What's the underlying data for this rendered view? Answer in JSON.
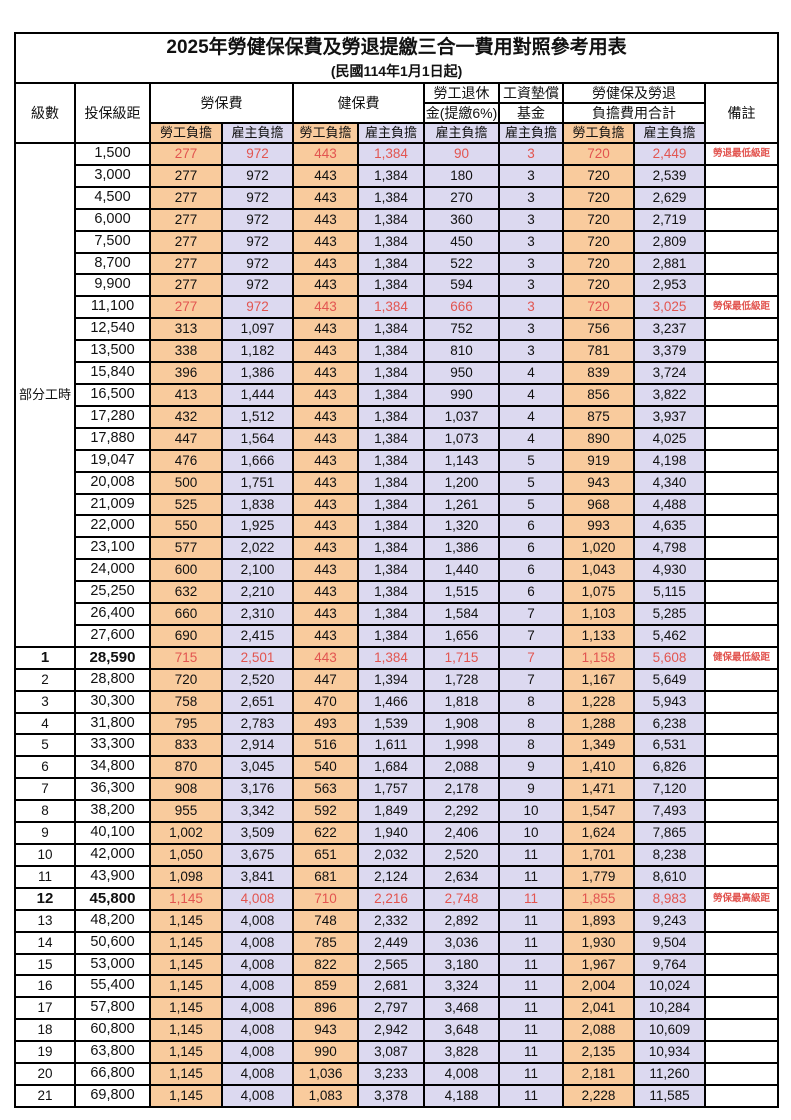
{
  "title": "2025年勞健保保費及勞退提繳三合一費用對照參考用表",
  "subtitle": "(民國114年1月1日起)",
  "colors": {
    "employee_bg": "#f9cb9d",
    "employer_bg": "#dcd9f0",
    "highlight_red": "#e25550",
    "border_color": "#000000"
  },
  "header": {
    "level": "級數",
    "bracket": "投保級距",
    "labor_insurance": "勞保費",
    "health_insurance": "健保費",
    "pension_line1": "勞工退休",
    "pension_line2": "金(提繳6%)",
    "wage_fund_line1": "工資墊償",
    "wage_fund_line2": "基金",
    "total_line1": "勞健保及勞退",
    "total_line2": "負擔費用合計",
    "remark": "備註",
    "employee_share": "勞工負擔",
    "employer_share": "雇主負擔"
  },
  "part_time_label": "部分工時",
  "rows": [
    {
      "level": "",
      "salary": "1,500",
      "li_emp": "277",
      "li_er": "972",
      "hi_emp": "443",
      "hi_er": "1,384",
      "pension": "90",
      "fund": "3",
      "tot_emp": "720",
      "tot_er": "2,449",
      "remark": "勞退最低級距",
      "highlight": true,
      "bold": false
    },
    {
      "level": "",
      "salary": "3,000",
      "li_emp": "277",
      "li_er": "972",
      "hi_emp": "443",
      "hi_er": "1,384",
      "pension": "180",
      "fund": "3",
      "tot_emp": "720",
      "tot_er": "2,539",
      "remark": "",
      "highlight": false,
      "bold": false
    },
    {
      "level": "",
      "salary": "4,500",
      "li_emp": "277",
      "li_er": "972",
      "hi_emp": "443",
      "hi_er": "1,384",
      "pension": "270",
      "fund": "3",
      "tot_emp": "720",
      "tot_er": "2,629",
      "remark": "",
      "highlight": false,
      "bold": false
    },
    {
      "level": "",
      "salary": "6,000",
      "li_emp": "277",
      "li_er": "972",
      "hi_emp": "443",
      "hi_er": "1,384",
      "pension": "360",
      "fund": "3",
      "tot_emp": "720",
      "tot_er": "2,719",
      "remark": "",
      "highlight": false,
      "bold": false
    },
    {
      "level": "",
      "salary": "7,500",
      "li_emp": "277",
      "li_er": "972",
      "hi_emp": "443",
      "hi_er": "1,384",
      "pension": "450",
      "fund": "3",
      "tot_emp": "720",
      "tot_er": "2,809",
      "remark": "",
      "highlight": false,
      "bold": false
    },
    {
      "level": "",
      "salary": "8,700",
      "li_emp": "277",
      "li_er": "972",
      "hi_emp": "443",
      "hi_er": "1,384",
      "pension": "522",
      "fund": "3",
      "tot_emp": "720",
      "tot_er": "2,881",
      "remark": "",
      "highlight": false,
      "bold": false
    },
    {
      "level": "",
      "salary": "9,900",
      "li_emp": "277",
      "li_er": "972",
      "hi_emp": "443",
      "hi_er": "1,384",
      "pension": "594",
      "fund": "3",
      "tot_emp": "720",
      "tot_er": "2,953",
      "remark": "",
      "highlight": false,
      "bold": false
    },
    {
      "level": "",
      "salary": "11,100",
      "li_emp": "277",
      "li_er": "972",
      "hi_emp": "443",
      "hi_er": "1,384",
      "pension": "666",
      "fund": "3",
      "tot_emp": "720",
      "tot_er": "3,025",
      "remark": "勞保最低級距",
      "highlight": true,
      "bold": false
    },
    {
      "level": "",
      "salary": "12,540",
      "li_emp": "313",
      "li_er": "1,097",
      "hi_emp": "443",
      "hi_er": "1,384",
      "pension": "752",
      "fund": "3",
      "tot_emp": "756",
      "tot_er": "3,237",
      "remark": "",
      "highlight": false,
      "bold": false
    },
    {
      "level": "",
      "salary": "13,500",
      "li_emp": "338",
      "li_er": "1,182",
      "hi_emp": "443",
      "hi_er": "1,384",
      "pension": "810",
      "fund": "3",
      "tot_emp": "781",
      "tot_er": "3,379",
      "remark": "",
      "highlight": false,
      "bold": false
    },
    {
      "level": "",
      "salary": "15,840",
      "li_emp": "396",
      "li_er": "1,386",
      "hi_emp": "443",
      "hi_er": "1,384",
      "pension": "950",
      "fund": "4",
      "tot_emp": "839",
      "tot_er": "3,724",
      "remark": "",
      "highlight": false,
      "bold": false
    },
    {
      "level": "",
      "salary": "16,500",
      "li_emp": "413",
      "li_er": "1,444",
      "hi_emp": "443",
      "hi_er": "1,384",
      "pension": "990",
      "fund": "4",
      "tot_emp": "856",
      "tot_er": "3,822",
      "remark": "",
      "highlight": false,
      "bold": false
    },
    {
      "level": "",
      "salary": "17,280",
      "li_emp": "432",
      "li_er": "1,512",
      "hi_emp": "443",
      "hi_er": "1,384",
      "pension": "1,037",
      "fund": "4",
      "tot_emp": "875",
      "tot_er": "3,937",
      "remark": "",
      "highlight": false,
      "bold": false
    },
    {
      "level": "",
      "salary": "17,880",
      "li_emp": "447",
      "li_er": "1,564",
      "hi_emp": "443",
      "hi_er": "1,384",
      "pension": "1,073",
      "fund": "4",
      "tot_emp": "890",
      "tot_er": "4,025",
      "remark": "",
      "highlight": false,
      "bold": false
    },
    {
      "level": "",
      "salary": "19,047",
      "li_emp": "476",
      "li_er": "1,666",
      "hi_emp": "443",
      "hi_er": "1,384",
      "pension": "1,143",
      "fund": "5",
      "tot_emp": "919",
      "tot_er": "4,198",
      "remark": "",
      "highlight": false,
      "bold": false
    },
    {
      "level": "",
      "salary": "20,008",
      "li_emp": "500",
      "li_er": "1,751",
      "hi_emp": "443",
      "hi_er": "1,384",
      "pension": "1,200",
      "fund": "5",
      "tot_emp": "943",
      "tot_er": "4,340",
      "remark": "",
      "highlight": false,
      "bold": false
    },
    {
      "level": "",
      "salary": "21,009",
      "li_emp": "525",
      "li_er": "1,838",
      "hi_emp": "443",
      "hi_er": "1,384",
      "pension": "1,261",
      "fund": "5",
      "tot_emp": "968",
      "tot_er": "4,488",
      "remark": "",
      "highlight": false,
      "bold": false
    },
    {
      "level": "",
      "salary": "22,000",
      "li_emp": "550",
      "li_er": "1,925",
      "hi_emp": "443",
      "hi_er": "1,384",
      "pension": "1,320",
      "fund": "6",
      "tot_emp": "993",
      "tot_er": "4,635",
      "remark": "",
      "highlight": false,
      "bold": false
    },
    {
      "level": "",
      "salary": "23,100",
      "li_emp": "577",
      "li_er": "2,022",
      "hi_emp": "443",
      "hi_er": "1,384",
      "pension": "1,386",
      "fund": "6",
      "tot_emp": "1,020",
      "tot_er": "4,798",
      "remark": "",
      "highlight": false,
      "bold": false
    },
    {
      "level": "",
      "salary": "24,000",
      "li_emp": "600",
      "li_er": "2,100",
      "hi_emp": "443",
      "hi_er": "1,384",
      "pension": "1,440",
      "fund": "6",
      "tot_emp": "1,043",
      "tot_er": "4,930",
      "remark": "",
      "highlight": false,
      "bold": false
    },
    {
      "level": "",
      "salary": "25,250",
      "li_emp": "632",
      "li_er": "2,210",
      "hi_emp": "443",
      "hi_er": "1,384",
      "pension": "1,515",
      "fund": "6",
      "tot_emp": "1,075",
      "tot_er": "5,115",
      "remark": "",
      "highlight": false,
      "bold": false
    },
    {
      "level": "",
      "salary": "26,400",
      "li_emp": "660",
      "li_er": "2,310",
      "hi_emp": "443",
      "hi_er": "1,384",
      "pension": "1,584",
      "fund": "7",
      "tot_emp": "1,103",
      "tot_er": "5,285",
      "remark": "",
      "highlight": false,
      "bold": false
    },
    {
      "level": "",
      "salary": "27,600",
      "li_emp": "690",
      "li_er": "2,415",
      "hi_emp": "443",
      "hi_er": "1,384",
      "pension": "1,656",
      "fund": "7",
      "tot_emp": "1,133",
      "tot_er": "5,462",
      "remark": "",
      "highlight": false,
      "bold": false
    },
    {
      "level": "1",
      "salary": "28,590",
      "li_emp": "715",
      "li_er": "2,501",
      "hi_emp": "443",
      "hi_er": "1,384",
      "pension": "1,715",
      "fund": "7",
      "tot_emp": "1,158",
      "tot_er": "5,608",
      "remark": "健保最低級距",
      "highlight": true,
      "bold": true
    },
    {
      "level": "2",
      "salary": "28,800",
      "li_emp": "720",
      "li_er": "2,520",
      "hi_emp": "447",
      "hi_er": "1,394",
      "pension": "1,728",
      "fund": "7",
      "tot_emp": "1,167",
      "tot_er": "5,649",
      "remark": "",
      "highlight": false,
      "bold": false
    },
    {
      "level": "3",
      "salary": "30,300",
      "li_emp": "758",
      "li_er": "2,651",
      "hi_emp": "470",
      "hi_er": "1,466",
      "pension": "1,818",
      "fund": "8",
      "tot_emp": "1,228",
      "tot_er": "5,943",
      "remark": "",
      "highlight": false,
      "bold": false
    },
    {
      "level": "4",
      "salary": "31,800",
      "li_emp": "795",
      "li_er": "2,783",
      "hi_emp": "493",
      "hi_er": "1,539",
      "pension": "1,908",
      "fund": "8",
      "tot_emp": "1,288",
      "tot_er": "6,238",
      "remark": "",
      "highlight": false,
      "bold": false
    },
    {
      "level": "5",
      "salary": "33,300",
      "li_emp": "833",
      "li_er": "2,914",
      "hi_emp": "516",
      "hi_er": "1,611",
      "pension": "1,998",
      "fund": "8",
      "tot_emp": "1,349",
      "tot_er": "6,531",
      "remark": "",
      "highlight": false,
      "bold": false
    },
    {
      "level": "6",
      "salary": "34,800",
      "li_emp": "870",
      "li_er": "3,045",
      "hi_emp": "540",
      "hi_er": "1,684",
      "pension": "2,088",
      "fund": "9",
      "tot_emp": "1,410",
      "tot_er": "6,826",
      "remark": "",
      "highlight": false,
      "bold": false
    },
    {
      "level": "7",
      "salary": "36,300",
      "li_emp": "908",
      "li_er": "3,176",
      "hi_emp": "563",
      "hi_er": "1,757",
      "pension": "2,178",
      "fund": "9",
      "tot_emp": "1,471",
      "tot_er": "7,120",
      "remark": "",
      "highlight": false,
      "bold": false
    },
    {
      "level": "8",
      "salary": "38,200",
      "li_emp": "955",
      "li_er": "3,342",
      "hi_emp": "592",
      "hi_er": "1,849",
      "pension": "2,292",
      "fund": "10",
      "tot_emp": "1,547",
      "tot_er": "7,493",
      "remark": "",
      "highlight": false,
      "bold": false
    },
    {
      "level": "9",
      "salary": "40,100",
      "li_emp": "1,002",
      "li_er": "3,509",
      "hi_emp": "622",
      "hi_er": "1,940",
      "pension": "2,406",
      "fund": "10",
      "tot_emp": "1,624",
      "tot_er": "7,865",
      "remark": "",
      "highlight": false,
      "bold": false
    },
    {
      "level": "10",
      "salary": "42,000",
      "li_emp": "1,050",
      "li_er": "3,675",
      "hi_emp": "651",
      "hi_er": "2,032",
      "pension": "2,520",
      "fund": "11",
      "tot_emp": "1,701",
      "tot_er": "8,238",
      "remark": "",
      "highlight": false,
      "bold": false
    },
    {
      "level": "11",
      "salary": "43,900",
      "li_emp": "1,098",
      "li_er": "3,841",
      "hi_emp": "681",
      "hi_er": "2,124",
      "pension": "2,634",
      "fund": "11",
      "tot_emp": "1,779",
      "tot_er": "8,610",
      "remark": "",
      "highlight": false,
      "bold": false
    },
    {
      "level": "12",
      "salary": "45,800",
      "li_emp": "1,145",
      "li_er": "4,008",
      "hi_emp": "710",
      "hi_er": "2,216",
      "pension": "2,748",
      "fund": "11",
      "tot_emp": "1,855",
      "tot_er": "8,983",
      "remark": "勞保最高級距",
      "highlight": true,
      "bold": true
    },
    {
      "level": "13",
      "salary": "48,200",
      "li_emp": "1,145",
      "li_er": "4,008",
      "hi_emp": "748",
      "hi_er": "2,332",
      "pension": "2,892",
      "fund": "11",
      "tot_emp": "1,893",
      "tot_er": "9,243",
      "remark": "",
      "highlight": false,
      "bold": false
    },
    {
      "level": "14",
      "salary": "50,600",
      "li_emp": "1,145",
      "li_er": "4,008",
      "hi_emp": "785",
      "hi_er": "2,449",
      "pension": "3,036",
      "fund": "11",
      "tot_emp": "1,930",
      "tot_er": "9,504",
      "remark": "",
      "highlight": false,
      "bold": false
    },
    {
      "level": "15",
      "salary": "53,000",
      "li_emp": "1,145",
      "li_er": "4,008",
      "hi_emp": "822",
      "hi_er": "2,565",
      "pension": "3,180",
      "fund": "11",
      "tot_emp": "1,967",
      "tot_er": "9,764",
      "remark": "",
      "highlight": false,
      "bold": false
    },
    {
      "level": "16",
      "salary": "55,400",
      "li_emp": "1,145",
      "li_er": "4,008",
      "hi_emp": "859",
      "hi_er": "2,681",
      "pension": "3,324",
      "fund": "11",
      "tot_emp": "2,004",
      "tot_er": "10,024",
      "remark": "",
      "highlight": false,
      "bold": false
    },
    {
      "level": "17",
      "salary": "57,800",
      "li_emp": "1,145",
      "li_er": "4,008",
      "hi_emp": "896",
      "hi_er": "2,797",
      "pension": "3,468",
      "fund": "11",
      "tot_emp": "2,041",
      "tot_er": "10,284",
      "remark": "",
      "highlight": false,
      "bold": false
    },
    {
      "level": "18",
      "salary": "60,800",
      "li_emp": "1,145",
      "li_er": "4,008",
      "hi_emp": "943",
      "hi_er": "2,942",
      "pension": "3,648",
      "fund": "11",
      "tot_emp": "2,088",
      "tot_er": "10,609",
      "remark": "",
      "highlight": false,
      "bold": false
    },
    {
      "level": "19",
      "salary": "63,800",
      "li_emp": "1,145",
      "li_er": "4,008",
      "hi_emp": "990",
      "hi_er": "3,087",
      "pension": "3,828",
      "fund": "11",
      "tot_emp": "2,135",
      "tot_er": "10,934",
      "remark": "",
      "highlight": false,
      "bold": false
    },
    {
      "level": "20",
      "salary": "66,800",
      "li_emp": "1,145",
      "li_er": "4,008",
      "hi_emp": "1,036",
      "hi_er": "3,233",
      "pension": "4,008",
      "fund": "11",
      "tot_emp": "2,181",
      "tot_er": "11,260",
      "remark": "",
      "highlight": false,
      "bold": false
    },
    {
      "level": "21",
      "salary": "69,800",
      "li_emp": "1,145",
      "li_er": "4,008",
      "hi_emp": "1,083",
      "hi_er": "3,378",
      "pension": "4,188",
      "fund": "11",
      "tot_emp": "2,228",
      "tot_er": "11,585",
      "remark": "",
      "highlight": false,
      "bold": false
    }
  ]
}
